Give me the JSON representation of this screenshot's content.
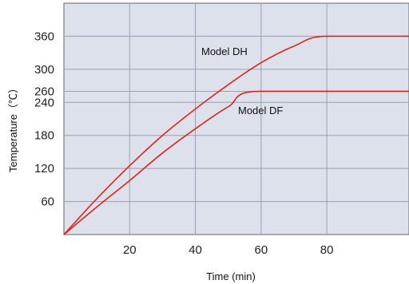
{
  "chart_data": {
    "type": "line",
    "xlabel": "Time (min)",
    "ylabel": "Temperature（℃）",
    "xlim": [
      0,
      105
    ],
    "ylim": [
      0,
      420
    ],
    "x_ticks": [
      20,
      40,
      60,
      80
    ],
    "y_ticks": [
      60,
      120,
      180,
      240,
      260,
      300,
      360
    ],
    "grid": true,
    "colors": {
      "plot_background": "#dde1ec",
      "grid": "#9aa0ae",
      "line": "#e2231a"
    },
    "series": [
      {
        "name": "Model DH",
        "x": [
          0,
          10,
          20,
          30,
          40,
          50,
          60,
          70,
          80,
          105
        ],
        "y": [
          0,
          65,
          125,
          180,
          228,
          272,
          312,
          342,
          360,
          360
        ]
      },
      {
        "name": "Model DF",
        "x": [
          0,
          10,
          20,
          30,
          40,
          50,
          60,
          105
        ],
        "y": [
          0,
          50,
          98,
          148,
          192,
          232,
          260,
          260
        ]
      }
    ]
  }
}
